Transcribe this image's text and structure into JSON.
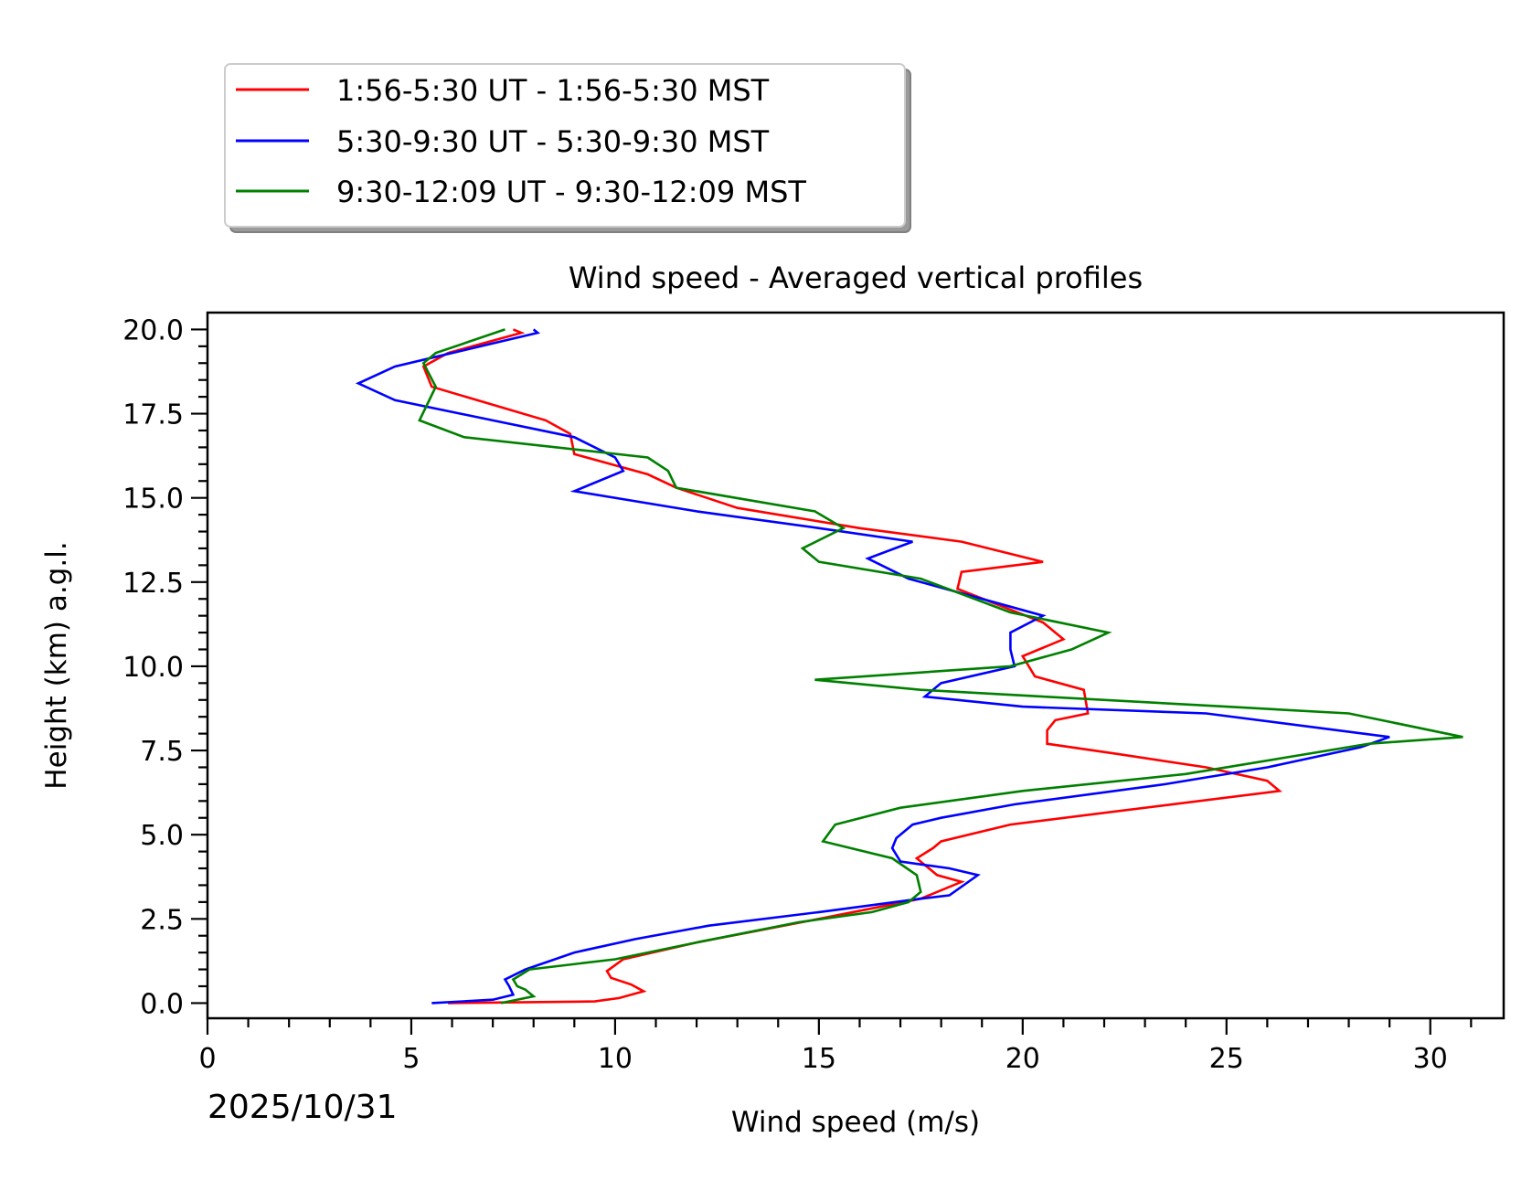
{
  "chart_data": {
    "type": "line",
    "title": "Wind speed - Averaged vertical profiles",
    "xlabel": "Wind speed (m/s)",
    "ylabel": "Height (km) a.g.l.",
    "xlim": [
      0,
      31.8
    ],
    "ylim": [
      -0.45,
      20.5
    ],
    "xticks": [
      0,
      5,
      10,
      15,
      20,
      25,
      30
    ],
    "yticks": [
      0.0,
      2.5,
      5.0,
      7.5,
      10.0,
      12.5,
      15.0,
      17.5,
      20.0
    ],
    "xtick_labels": [
      "0",
      "5",
      "10",
      "15",
      "20",
      "25",
      "30"
    ],
    "ytick_labels": [
      "0.0",
      "2.5",
      "5.0",
      "7.5",
      "10.0",
      "12.5",
      "15.0",
      "17.5",
      "20.0"
    ],
    "date_label": "2025/10/31",
    "legend_position": "top-left, outside plot",
    "series": [
      {
        "name": "1:56-5:30 UT - 1:56-5:30 MST",
        "color": "#ff0000",
        "points": [
          [
            5.9,
            0.0
          ],
          [
            9.5,
            0.05
          ],
          [
            10.1,
            0.15
          ],
          [
            10.7,
            0.35
          ],
          [
            10.4,
            0.55
          ],
          [
            9.9,
            0.75
          ],
          [
            9.8,
            0.95
          ],
          [
            10.2,
            1.3
          ],
          [
            12.0,
            1.8
          ],
          [
            15.0,
            2.5
          ],
          [
            17.5,
            3.1
          ],
          [
            18.5,
            3.6
          ],
          [
            17.9,
            3.8
          ],
          [
            17.4,
            4.3
          ],
          [
            17.8,
            4.6
          ],
          [
            18.0,
            4.8
          ],
          [
            19.7,
            5.3
          ],
          [
            26.3,
            6.3
          ],
          [
            26.0,
            6.6
          ],
          [
            24.5,
            7.0
          ],
          [
            22.3,
            7.4
          ],
          [
            20.6,
            7.7
          ],
          [
            20.6,
            8.1
          ],
          [
            20.8,
            8.4
          ],
          [
            21.6,
            8.6
          ],
          [
            21.5,
            9.3
          ],
          [
            20.3,
            9.7
          ],
          [
            20.0,
            10.3
          ],
          [
            21.0,
            10.8
          ],
          [
            20.5,
            11.3
          ],
          [
            18.4,
            12.3
          ],
          [
            18.5,
            12.8
          ],
          [
            20.5,
            13.1
          ],
          [
            18.5,
            13.7
          ],
          [
            16.0,
            14.1
          ],
          [
            13.0,
            14.7
          ],
          [
            11.5,
            15.3
          ],
          [
            10.8,
            15.7
          ],
          [
            9.0,
            16.3
          ],
          [
            8.9,
            16.9
          ],
          [
            8.3,
            17.3
          ],
          [
            5.5,
            18.3
          ],
          [
            5.3,
            18.9
          ],
          [
            5.9,
            19.3
          ],
          [
            7.7,
            19.9
          ],
          [
            7.5,
            20.0
          ]
        ]
      },
      {
        "name": "5:30-9:30 UT - 5:30-9:30 MST",
        "color": "#0000ff",
        "points": [
          [
            5.5,
            0.0
          ],
          [
            7.0,
            0.1
          ],
          [
            7.5,
            0.25
          ],
          [
            7.4,
            0.5
          ],
          [
            7.3,
            0.7
          ],
          [
            7.8,
            1.0
          ],
          [
            9.0,
            1.5
          ],
          [
            10.5,
            1.9
          ],
          [
            12.3,
            2.3
          ],
          [
            15.0,
            2.7
          ],
          [
            17.5,
            3.1
          ],
          [
            18.2,
            3.2
          ],
          [
            18.9,
            3.8
          ],
          [
            18.2,
            4.0
          ],
          [
            17.0,
            4.2
          ],
          [
            16.8,
            4.6
          ],
          [
            16.9,
            4.9
          ],
          [
            17.3,
            5.3
          ],
          [
            18.0,
            5.5
          ],
          [
            19.8,
            5.9
          ],
          [
            23.5,
            6.5
          ],
          [
            26.0,
            7.0
          ],
          [
            28.3,
            7.6
          ],
          [
            29.0,
            7.9
          ],
          [
            24.5,
            8.6
          ],
          [
            20.0,
            8.8
          ],
          [
            17.6,
            9.1
          ],
          [
            18.0,
            9.5
          ],
          [
            19.8,
            10.0
          ],
          [
            19.7,
            10.5
          ],
          [
            19.7,
            11.0
          ],
          [
            20.5,
            11.5
          ],
          [
            17.2,
            12.6
          ],
          [
            16.2,
            13.2
          ],
          [
            17.3,
            13.7
          ],
          [
            15.0,
            14.1
          ],
          [
            12.0,
            14.6
          ],
          [
            9.0,
            15.2
          ],
          [
            10.2,
            15.8
          ],
          [
            10.0,
            16.2
          ],
          [
            9.0,
            16.8
          ],
          [
            7.0,
            17.3
          ],
          [
            4.6,
            17.9
          ],
          [
            3.7,
            18.4
          ],
          [
            4.6,
            18.9
          ],
          [
            6.0,
            19.3
          ],
          [
            8.1,
            19.9
          ],
          [
            8.0,
            20.0
          ]
        ]
      },
      {
        "name": "9:30-12:09 UT - 9:30-12:09 MST",
        "color": "#008000",
        "points": [
          [
            7.2,
            0.0
          ],
          [
            8.0,
            0.2
          ],
          [
            7.8,
            0.4
          ],
          [
            7.6,
            0.5
          ],
          [
            7.5,
            0.7
          ],
          [
            7.9,
            1.0
          ],
          [
            10.0,
            1.3
          ],
          [
            12.0,
            1.8
          ],
          [
            14.5,
            2.4
          ],
          [
            16.3,
            2.7
          ],
          [
            17.2,
            3.0
          ],
          [
            17.5,
            3.3
          ],
          [
            17.4,
            3.8
          ],
          [
            16.8,
            4.3
          ],
          [
            15.1,
            4.8
          ],
          [
            15.4,
            5.3
          ],
          [
            17.0,
            5.8
          ],
          [
            20.0,
            6.3
          ],
          [
            24.0,
            6.8
          ],
          [
            26.5,
            7.3
          ],
          [
            28.5,
            7.7
          ],
          [
            30.8,
            7.9
          ],
          [
            28.0,
            8.6
          ],
          [
            25.0,
            8.8
          ],
          [
            20.5,
            9.1
          ],
          [
            17.5,
            9.3
          ],
          [
            14.9,
            9.6
          ],
          [
            19.7,
            10.0
          ],
          [
            21.2,
            10.5
          ],
          [
            22.1,
            11.0
          ],
          [
            19.7,
            11.6
          ],
          [
            17.5,
            12.6
          ],
          [
            15.0,
            13.1
          ],
          [
            14.6,
            13.5
          ],
          [
            15.6,
            14.1
          ],
          [
            14.9,
            14.6
          ],
          [
            11.5,
            15.3
          ],
          [
            11.3,
            15.8
          ],
          [
            10.8,
            16.2
          ],
          [
            6.3,
            16.8
          ],
          [
            5.2,
            17.3
          ],
          [
            5.6,
            18.3
          ],
          [
            5.3,
            19.0
          ],
          [
            5.6,
            19.3
          ],
          [
            7.3,
            20.0
          ]
        ]
      }
    ]
  }
}
